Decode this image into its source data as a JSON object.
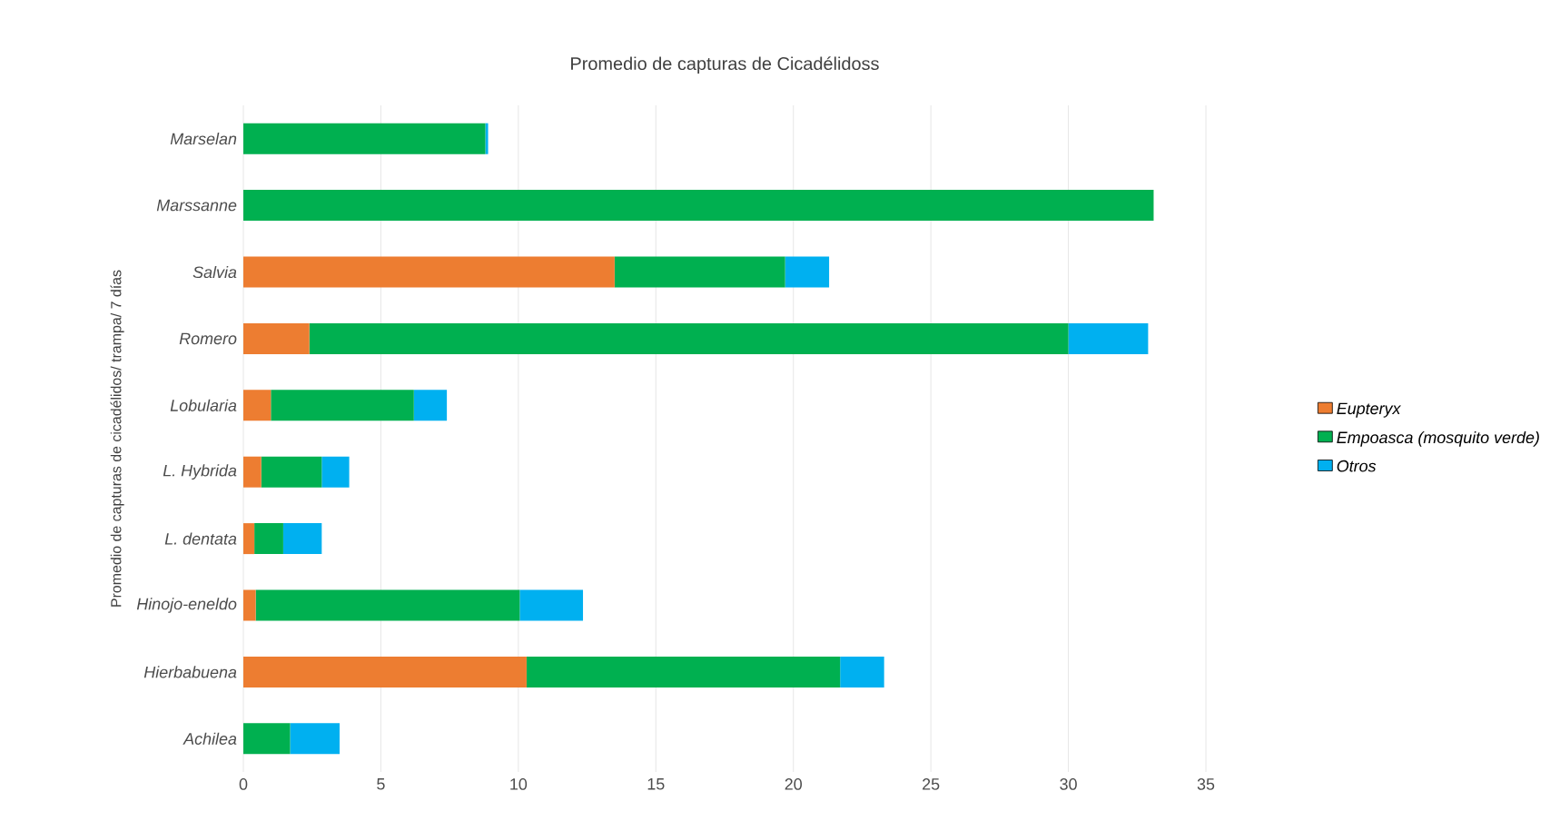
{
  "chart_data": {
    "type": "bar",
    "orientation": "horizontal",
    "stacked": true,
    "title": "Promedio de capturas  de Cicadélidoss",
    "ylabel": "Promedio de capturas de  cicadélidos/ trampa/ 7 días",
    "categories": [
      "Marselan",
      "Marssanne",
      "Salvia",
      "Romero",
      "Lobularia",
      "L. Hybrida",
      "L. dentata",
      "Hinojo-eneldo",
      "Hierbabuena",
      "Achilea"
    ],
    "series": [
      {
        "name": "Eupteryx",
        "color": "#ed7d31",
        "values": [
          0,
          0,
          13.5,
          2.4,
          1.0,
          0.65,
          0.4,
          0.45,
          10.3,
          0
        ]
      },
      {
        "name": "Empoasca (mosquito verde)",
        "color": "#00b050",
        "values": [
          8.8,
          33.1,
          6.2,
          27.6,
          5.2,
          2.2,
          1.05,
          9.6,
          11.4,
          1.7
        ]
      },
      {
        "name": "Otros",
        "color": "#00b0f0",
        "values": [
          0.1,
          0,
          1.6,
          2.9,
          1.2,
          1.0,
          1.4,
          2.3,
          1.6,
          1.8
        ]
      }
    ],
    "xlim": [
      0,
      35
    ],
    "xticks": [
      0,
      5,
      10,
      15,
      20,
      25,
      30,
      35
    ],
    "grid": "x",
    "legend": "right"
  }
}
